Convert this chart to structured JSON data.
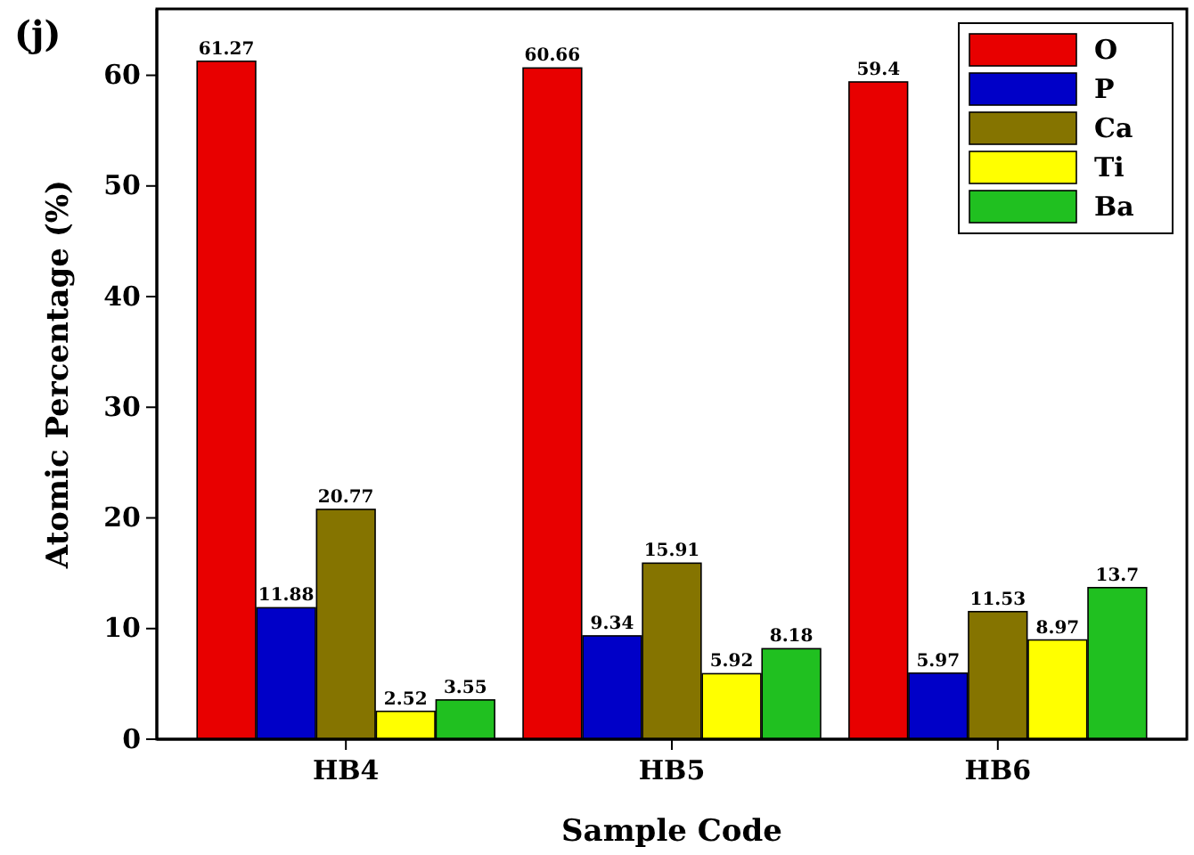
{
  "chart_data": {
    "type": "bar",
    "xlabel": "Sample Code",
    "ylabel": "Atomic Percentage (%)",
    "annotations": [
      "(j)"
    ],
    "categories": [
      "HB4",
      "HB5",
      "HB6"
    ],
    "series": [
      {
        "name": "O",
        "color": "#e80000",
        "values": [
          61.27,
          60.66,
          59.4
        ]
      },
      {
        "name": "P",
        "color": "#0000c8",
        "values": [
          11.88,
          9.34,
          5.97
        ]
      },
      {
        "name": "Ca",
        "color": "#857400",
        "values": [
          20.77,
          15.91,
          11.53
        ]
      },
      {
        "name": "Ti",
        "color": "#ffff00",
        "values": [
          2.52,
          5.92,
          8.97
        ]
      },
      {
        "name": "Ba",
        "color": "#20c020",
        "values": [
          3.55,
          8.18,
          13.7
        ]
      }
    ],
    "ylim": [
      0,
      66
    ],
    "yticks": [
      0,
      10,
      20,
      30,
      40,
      50,
      60
    ],
    "data_labels": true,
    "legend": "top right",
    "grid": false
  }
}
